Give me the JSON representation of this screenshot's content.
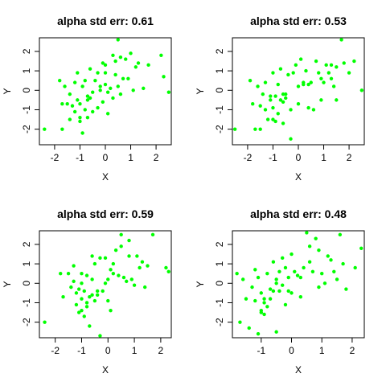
{
  "chart_data": [
    {
      "type": "scatter",
      "title": "alpha std err:  0.61",
      "xlabel": "X",
      "ylabel": "Y",
      "xlim": [
        -2.6,
        2.6
      ],
      "ylim": [
        -2.8,
        2.7
      ],
      "xticks": [
        -2,
        -1,
        0,
        1,
        2
      ],
      "yticks": [
        -2,
        -1,
        0,
        1,
        2
      ],
      "point_color": "#00ff00",
      "grid": false,
      "x": [
        -2.4,
        -1.8,
        -1.7,
        -1.7,
        -1.6,
        -1.5,
        -1.4,
        -1.3,
        -1.2,
        -1.2,
        -1.1,
        -1.1,
        -1.0,
        -1.0,
        -1.0,
        -0.9,
        -0.9,
        -0.8,
        -0.8,
        -0.7,
        -0.7,
        -0.6,
        -0.6,
        -0.5,
        -0.5,
        -0.4,
        -0.3,
        -0.2,
        -0.1,
        -0.1,
        0.0,
        0.0,
        0.0,
        0.1,
        0.2,
        0.3,
        0.3,
        0.4,
        0.4,
        0.5,
        0.6,
        0.7,
        0.8,
        0.9,
        1.0,
        1.1,
        1.2,
        1.3,
        1.5,
        1.7,
        2.2,
        2.3,
        2.5,
        -0.2,
        -0.3,
        0.1,
        0.6,
        -1.4,
        -0.7,
        0.5
      ],
      "y": [
        -2.0,
        0.5,
        -0.7,
        -2.0,
        0.2,
        -0.7,
        -0.2,
        -0.8,
        -1.1,
        0.4,
        -0.5,
        0.9,
        -1.6,
        -1.4,
        -0.7,
        -2.2,
        0.2,
        0.5,
        -1.0,
        -0.5,
        -1.4,
        1.1,
        -0.4,
        -0.1,
        -1.1,
        0.5,
        -0.9,
        0.0,
        1.4,
        -0.6,
        0.9,
        0.3,
        1.3,
        -1.2,
        0.1,
        1.8,
        -0.4,
        0.8,
        1.5,
        2.6,
        1.7,
        0.6,
        1.6,
        0.6,
        1.9,
        0.0,
        1.2,
        1.4,
        0.1,
        1.3,
        1.8,
        0.7,
        -0.1,
        0.2,
        0.9,
        -0.1,
        -0.2,
        -1.5,
        -0.3,
        0.2
      ]
    },
    {
      "type": "scatter",
      "title": "alpha std err:  0.53",
      "xlabel": "X",
      "ylabel": "Y",
      "xlim": [
        -2.6,
        2.6
      ],
      "ylim": [
        -2.8,
        2.7
      ],
      "xticks": [
        -2,
        -1,
        0,
        1,
        2
      ],
      "yticks": [
        -2,
        -1,
        0,
        1,
        2
      ],
      "point_color": "#00ff00",
      "grid": false,
      "x": [
        -2.5,
        -1.9,
        -1.8,
        -1.7,
        -1.6,
        -1.5,
        -1.4,
        -1.3,
        -1.3,
        -1.2,
        -1.1,
        -1.0,
        -1.0,
        -1.0,
        -0.9,
        -0.9,
        -0.8,
        -0.8,
        -0.7,
        -0.7,
        -0.6,
        -0.6,
        -0.5,
        -0.4,
        -0.3,
        -0.2,
        -0.1,
        0.0,
        0.0,
        0.1,
        0.2,
        0.3,
        0.4,
        0.5,
        0.6,
        0.7,
        0.8,
        0.9,
        1.0,
        1.1,
        1.2,
        1.3,
        1.4,
        1.5,
        1.7,
        1.8,
        2.0,
        2.2,
        2.5,
        -0.3,
        -0.6,
        0.4,
        -1.1,
        0.9,
        1.5,
        -0.5,
        0.2,
        -1.5,
        1.3
      ],
      "y": [
        -2.0,
        0.5,
        -0.7,
        -2.0,
        0.2,
        -0.8,
        -0.2,
        -1.0,
        0.4,
        -1.5,
        -0.5,
        -0.9,
        -1.5,
        0.9,
        -1.6,
        -0.3,
        -1.2,
        0.3,
        -0.5,
        1.1,
        -0.2,
        -0.6,
        -0.2,
        0.8,
        -1.0,
        0.9,
        1.3,
        -0.7,
        0.2,
        1.6,
        0.4,
        1.0,
        -0.9,
        0.4,
        -1.0,
        1.5,
        0.9,
        -0.5,
        0.4,
        1.3,
        0.9,
        1.3,
        0.2,
        -0.5,
        2.6,
        1.4,
        0.9,
        1.5,
        0.0,
        -2.5,
        -1.7,
        0.3,
        -0.3,
        0.6,
        1.2,
        -0.4,
        0.3,
        -2.0,
        0.6
      ]
    },
    {
      "type": "scatter",
      "title": "alpha std err:  0.59",
      "xlabel": "X",
      "ylabel": "Y",
      "xlim": [
        -2.6,
        2.4
      ],
      "ylim": [
        -2.8,
        2.7
      ],
      "xticks": [
        -2,
        -1,
        0,
        1,
        2
      ],
      "yticks": [
        -2,
        -1,
        0,
        1,
        2
      ],
      "point_color": "#00ff00",
      "grid": false,
      "x": [
        -2.4,
        -1.8,
        -1.7,
        -1.5,
        -1.4,
        -1.3,
        -1.2,
        -1.2,
        -1.1,
        -1.1,
        -1.0,
        -1.0,
        -1.0,
        -0.9,
        -0.9,
        -0.8,
        -0.8,
        -0.7,
        -0.7,
        -0.6,
        -0.6,
        -0.5,
        -0.5,
        -0.4,
        -0.3,
        -0.3,
        -0.2,
        -0.1,
        0.0,
        0.0,
        0.1,
        0.2,
        0.3,
        0.4,
        0.5,
        0.6,
        0.7,
        0.8,
        0.9,
        1.0,
        1.1,
        1.2,
        1.3,
        1.5,
        1.7,
        2.2,
        2.3,
        -0.1,
        -0.4,
        0.5,
        -0.8,
        0.1,
        -1.0,
        0.8,
        -0.6,
        1.4,
        -1.3,
        0.2
      ],
      "y": [
        -2.0,
        0.5,
        -0.7,
        0.5,
        -0.2,
        0.9,
        -0.5,
        -1.1,
        -0.3,
        -1.5,
        -0.8,
        -1.4,
        0.5,
        -1.7,
        -0.4,
        -1.0,
        0.4,
        -2.2,
        -0.7,
        1.4,
        0.2,
        -0.9,
        1.0,
        -0.4,
        -2.7,
        1.3,
        -0.4,
        1.3,
        0.2,
        -0.9,
        -1.4,
        0.5,
        1.7,
        0.4,
        2.5,
        0.3,
        0.1,
        1.4,
        0.2,
        -0.1,
        1.4,
        0.8,
        1.1,
        0.9,
        2.5,
        0.8,
        0.6,
        0.0,
        -0.6,
        1.9,
        -1.2,
        0.7,
        0.0,
        2.2,
        -0.6,
        -0.2,
        0.1,
        1.0
      ]
    },
    {
      "type": "scatter",
      "title": "alpha std err:  0.48",
      "xlabel": "X",
      "ylabel": "Y",
      "xlim": [
        -1.95,
        2.4
      ],
      "ylim": [
        -2.8,
        2.7
      ],
      "xticks": [
        -1,
        0,
        1,
        2
      ],
      "yticks": [
        -2,
        -1,
        0,
        1,
        2
      ],
      "point_color": "#00ff00",
      "grid": false,
      "x": [
        -1.8,
        -1.7,
        -1.6,
        -1.5,
        -1.4,
        -1.3,
        -1.2,
        -1.2,
        -1.1,
        -1.1,
        -1.0,
        -1.0,
        -0.9,
        -0.9,
        -0.8,
        -0.8,
        -0.7,
        -0.7,
        -0.6,
        -0.6,
        -0.5,
        -0.5,
        -0.4,
        -0.4,
        -0.3,
        -0.3,
        -0.2,
        -0.2,
        -0.1,
        0.0,
        0.0,
        0.1,
        0.2,
        0.3,
        0.4,
        0.5,
        0.6,
        0.7,
        0.8,
        0.9,
        1.0,
        1.1,
        1.2,
        1.3,
        1.5,
        1.6,
        1.7,
        1.8,
        2.1,
        2.3,
        -0.5,
        -0.9,
        0.3,
        -0.1,
        1.4,
        0.6,
        -1.0,
        0.9
      ],
      "y": [
        0.5,
        -2.0,
        0.2,
        -0.8,
        -2.3,
        -0.2,
        0.7,
        -0.9,
        0.3,
        -2.6,
        -1.4,
        -0.5,
        -1.0,
        -1.6,
        0.5,
        -1.2,
        -0.3,
        -0.8,
        1.1,
        -0.4,
        0.2,
        -2.5,
        -0.4,
        0.6,
        1.3,
        -0.1,
        0.8,
        -1.1,
        0.3,
        1.5,
        -0.5,
        0.6,
        0.4,
        -0.7,
        0.8,
        2.6,
        1.1,
        0.6,
        2.3,
        1.7,
        0.5,
        0.0,
        1.4,
        1.2,
        0.2,
        2.5,
        1.0,
        -0.3,
        0.8,
        1.8,
        0.0,
        -0.8,
        0.3,
        -0.4,
        0.6,
        1.9,
        -1.5,
        -0.2
      ]
    }
  ]
}
